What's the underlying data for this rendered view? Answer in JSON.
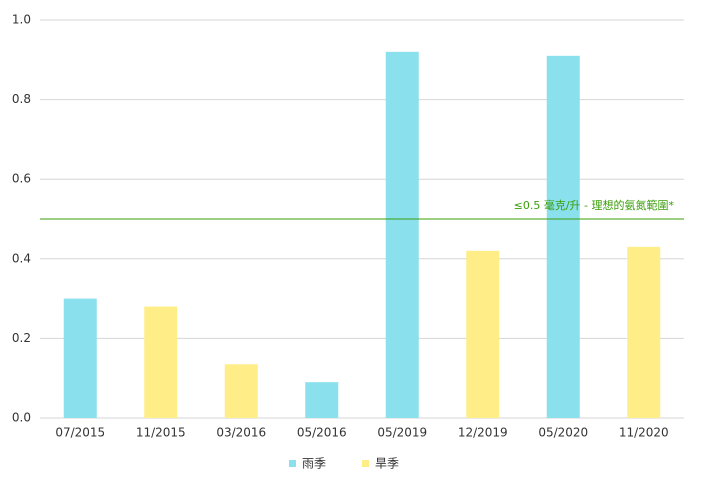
{
  "chart_data": {
    "type": "bar",
    "categories": [
      "07/2015",
      "11/2015",
      "03/2016",
      "05/2016",
      "05/2019",
      "12/2019",
      "05/2020",
      "11/2020"
    ],
    "series": [
      {
        "name": "雨季",
        "color": "#8ae0ec",
        "values": [
          0.3,
          null,
          null,
          0.09,
          0.92,
          null,
          0.91,
          null
        ]
      },
      {
        "name": "旱季",
        "color": "#ffee88",
        "values": [
          null,
          0.28,
          0.135,
          null,
          null,
          0.42,
          null,
          0.43
        ]
      }
    ],
    "ylim": [
      0,
      1
    ],
    "yticks": [
      {
        "value": 0,
        "label": "0.0"
      },
      0.2,
      0.4,
      0.6,
      0.8,
      {
        "value": 1,
        "label": "1.0"
      }
    ],
    "grid": true,
    "legend": "bottom",
    "reference_line": {
      "value": 0.5,
      "label": "≤0.5 毫克/升 - 理想的氨氮範圍*",
      "color": "#3a9e0a"
    }
  }
}
